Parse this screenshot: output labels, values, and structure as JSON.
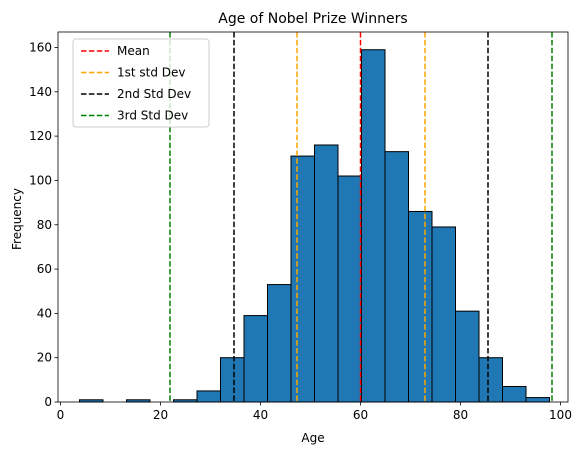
{
  "chart_data": {
    "type": "histogram",
    "title": "Age of Nobel Prize Winners",
    "xlabel": "Age",
    "ylabel": "Frequency",
    "xlim": [
      -0.5,
      101.5
    ],
    "ylim": [
      0,
      167
    ],
    "xticks": [
      0,
      20,
      40,
      60,
      80,
      100
    ],
    "yticks": [
      0,
      20,
      40,
      60,
      80,
      100,
      120,
      140,
      160
    ],
    "bar_color": "#1f77b4",
    "bar_edge_color": "#000000",
    "bins": [
      {
        "x0": 3.8,
        "x1": 8.5,
        "count": 1
      },
      {
        "x0": 8.5,
        "x1": 13.2,
        "count": 0
      },
      {
        "x0": 13.2,
        "x1": 17.9,
        "count": 1
      },
      {
        "x0": 17.9,
        "x1": 22.6,
        "count": 0
      },
      {
        "x0": 22.6,
        "x1": 27.3,
        "count": 1
      },
      {
        "x0": 27.3,
        "x1": 32.0,
        "count": 5
      },
      {
        "x0": 32.0,
        "x1": 36.7,
        "count": 20
      },
      {
        "x0": 36.7,
        "x1": 41.4,
        "count": 39
      },
      {
        "x0": 41.4,
        "x1": 46.1,
        "count": 53
      },
      {
        "x0": 46.1,
        "x1": 50.8,
        "count": 111
      },
      {
        "x0": 50.8,
        "x1": 55.5,
        "count": 116
      },
      {
        "x0": 55.5,
        "x1": 60.2,
        "count": 102
      },
      {
        "x0": 60.2,
        "x1": 64.9,
        "count": 159
      },
      {
        "x0": 64.9,
        "x1": 69.6,
        "count": 113
      },
      {
        "x0": 69.6,
        "x1": 74.3,
        "count": 86
      },
      {
        "x0": 74.3,
        "x1": 79.0,
        "count": 79
      },
      {
        "x0": 79.0,
        "x1": 83.7,
        "count": 41
      },
      {
        "x0": 83.7,
        "x1": 88.4,
        "count": 20
      },
      {
        "x0": 88.4,
        "x1": 93.1,
        "count": 7
      },
      {
        "x0": 93.1,
        "x1": 97.8,
        "count": 2
      }
    ],
    "vlines": [
      {
        "name": "Mean",
        "x": 60.0,
        "color": "#ff0000"
      },
      {
        "name": "1st std Dev",
        "x": 47.3,
        "color": "#ffa500"
      },
      {
        "name": "1st std Dev",
        "x": 72.9,
        "color": "#ffa500"
      },
      {
        "name": "2nd Std Dev",
        "x": 34.7,
        "color": "#000000"
      },
      {
        "name": "2nd Std Dev",
        "x": 85.5,
        "color": "#000000"
      },
      {
        "name": "3rd Std Dev",
        "x": 21.9,
        "color": "#008000"
      },
      {
        "name": "3rd Std Dev",
        "x": 98.3,
        "color": "#008000"
      }
    ],
    "legend": {
      "placement": "top-left",
      "entries": [
        {
          "label": "Mean",
          "color": "#ff0000"
        },
        {
          "label": "1st std Dev",
          "color": "#ffa500"
        },
        {
          "label": "2nd Std Dev",
          "color": "#000000"
        },
        {
          "label": "3rd Std Dev",
          "color": "#008000"
        }
      ]
    },
    "grid": false
  }
}
